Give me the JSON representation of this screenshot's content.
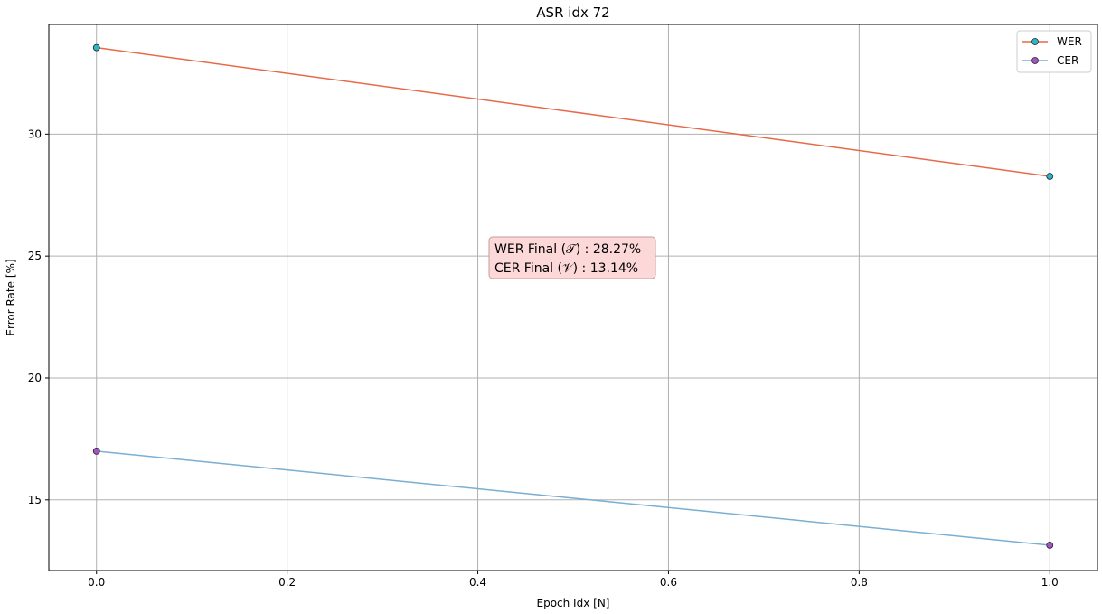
{
  "chart_data": {
    "type": "line",
    "title": "ASR idx 72",
    "xlabel": "Epoch Idx [N]",
    "ylabel": "Error Rate [%]",
    "xlim": [
      -0.05,
      1.05
    ],
    "ylim": [
      12.1,
      34.5
    ],
    "xticks": [
      0.0,
      0.2,
      0.4,
      0.6,
      0.8,
      1.0
    ],
    "xtick_labels": [
      "0.0",
      "0.2",
      "0.4",
      "0.6",
      "0.8",
      "1.0"
    ],
    "yticks": [
      15,
      20,
      25,
      30
    ],
    "ytick_labels": [
      "15",
      "20",
      "25",
      "30"
    ],
    "grid": true,
    "legend_position": "top-right",
    "x": [
      0,
      1
    ],
    "series": [
      {
        "name": "WER",
        "values": [
          33.55,
          28.27
        ],
        "line_color": "#e8694a",
        "marker_color": "#2ab5c8"
      },
      {
        "name": "CER",
        "values": [
          17.0,
          13.14
        ],
        "line_color": "#7aaed3",
        "marker_color": "#a552c4"
      }
    ],
    "annotation": {
      "lines": [
        "WER Final (𝒯) :  28.27%",
        "CER Final (𝒱) :  13.14%"
      ],
      "box_color": "#fdd8d8",
      "border_color": "#c99a9a"
    }
  }
}
